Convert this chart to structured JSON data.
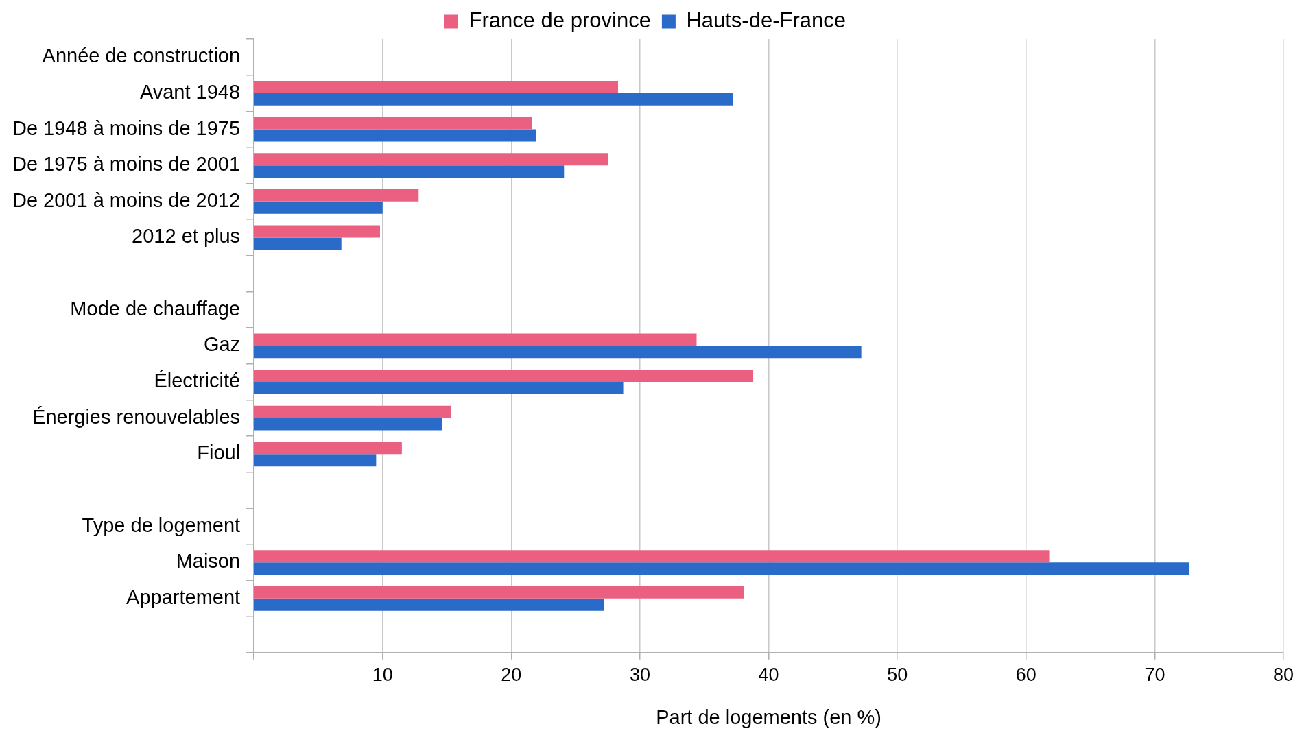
{
  "chart_data": {
    "type": "bar",
    "orientation": "horizontal",
    "xlabel": "Part de logements (en %)",
    "categories": [
      "Année de construction",
      "Avant 1948",
      "De 1948 à moins de 1975",
      "De 1975 à moins de 2001",
      "De 2001 à moins de 2012",
      "2012 et plus",
      null,
      "Mode de chauffage",
      "Gaz",
      "Électricité",
      "Énergies renouvelables",
      "Fioul",
      null,
      "Type de logement",
      "Maison",
      "Appartement",
      null
    ],
    "series": [
      {
        "name": "France de province",
        "color": "#eb6080",
        "values": [
          null,
          28.3,
          21.6,
          27.5,
          12.8,
          9.8,
          null,
          null,
          34.4,
          38.8,
          15.3,
          11.5,
          null,
          null,
          61.8,
          38.1,
          null
        ]
      },
      {
        "name": "Hauts-de-France",
        "color": "#2a6bc9",
        "values": [
          null,
          37.2,
          21.9,
          24.1,
          10.0,
          6.8,
          null,
          null,
          47.2,
          28.7,
          14.6,
          9.5,
          null,
          null,
          72.7,
          27.2,
          null
        ]
      }
    ],
    "xlim": [
      0,
      80
    ],
    "xticks": [
      {
        "value": 0,
        "label": null
      },
      10,
      20,
      30,
      40,
      50,
      60,
      70,
      80
    ],
    "grid": "x",
    "legend": "top"
  }
}
